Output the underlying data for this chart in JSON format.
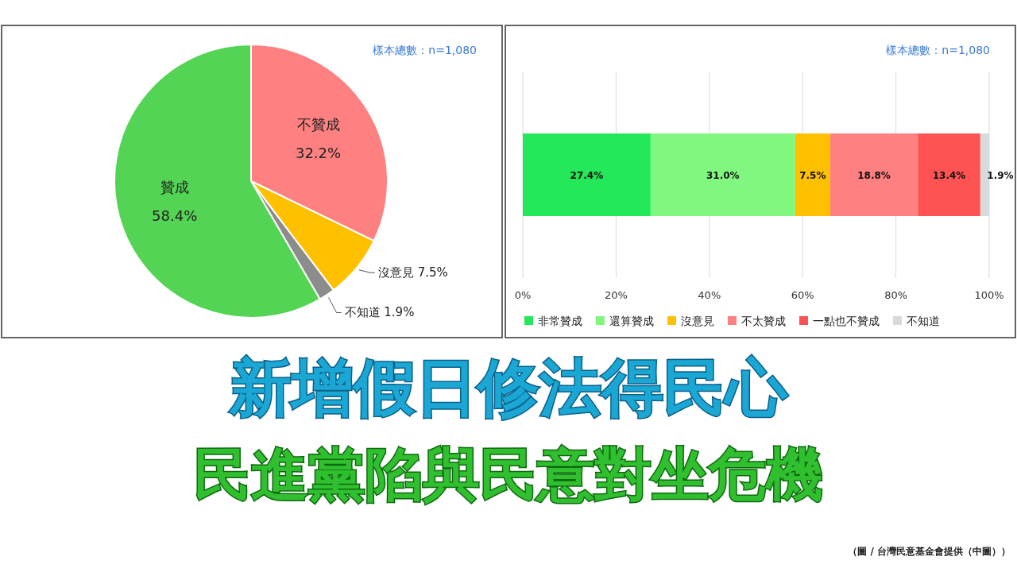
{
  "chart_data": [
    {
      "type": "pie",
      "categories": [
        "不贊成",
        "沒意見",
        "不知道",
        "贊成"
      ],
      "values": [
        32.2,
        7.5,
        1.9,
        58.4
      ],
      "colors": [
        "#ff8080",
        "#ffc000",
        "#8c8c8c",
        "#54d454"
      ],
      "value_labels": [
        "32.2%",
        "7.5%",
        "1.9%",
        "58.4%"
      ],
      "annotations": [
        "樣本總數：n=1,080"
      ]
    },
    {
      "type": "bar",
      "orientation": "horizontal",
      "stacked": true,
      "categories": [
        null
      ],
      "xlim": [
        0,
        100
      ],
      "xticks": [
        {
          "value": 0,
          "label": "0%"
        },
        {
          "value": 20,
          "label": "20%"
        },
        {
          "value": 40,
          "label": "40%"
        },
        {
          "value": 60,
          "label": "60%"
        },
        {
          "value": 80,
          "label": "80%"
        },
        {
          "value": 100,
          "label": "100%"
        }
      ],
      "grid": "x",
      "legend": "bottom",
      "series": [
        {
          "name": "非常贊成",
          "color": "#22e85a",
          "values": [
            27.4
          ],
          "value_labels": [
            "27.4%"
          ]
        },
        {
          "name": "還算贊成",
          "color": "#80f880",
          "values": [
            31.0
          ],
          "value_labels": [
            "31.0%"
          ]
        },
        {
          "name": "沒意見",
          "color": "#ffc000",
          "values": [
            7.5
          ],
          "value_labels": [
            "7.5%"
          ]
        },
        {
          "name": "不太贊成",
          "color": "#ff8080",
          "values": [
            18.8
          ],
          "value_labels": [
            "18.8%"
          ]
        },
        {
          "name": "一點也不贊成",
          "color": "#ff5252",
          "values": [
            13.4
          ],
          "value_labels": [
            "13.4%"
          ]
        },
        {
          "name": "不知道",
          "color": "#d9d9d9",
          "values": [
            1.9
          ],
          "value_labels": [
            "1.9%"
          ]
        }
      ],
      "annotations": [
        "樣本總數：n=1,080",
        "新增假日修法得民心",
        "民進黨陷與民意對坐危機",
        "（圖 / 台灣民意基金會提供（中圖））"
      ]
    }
  ]
}
